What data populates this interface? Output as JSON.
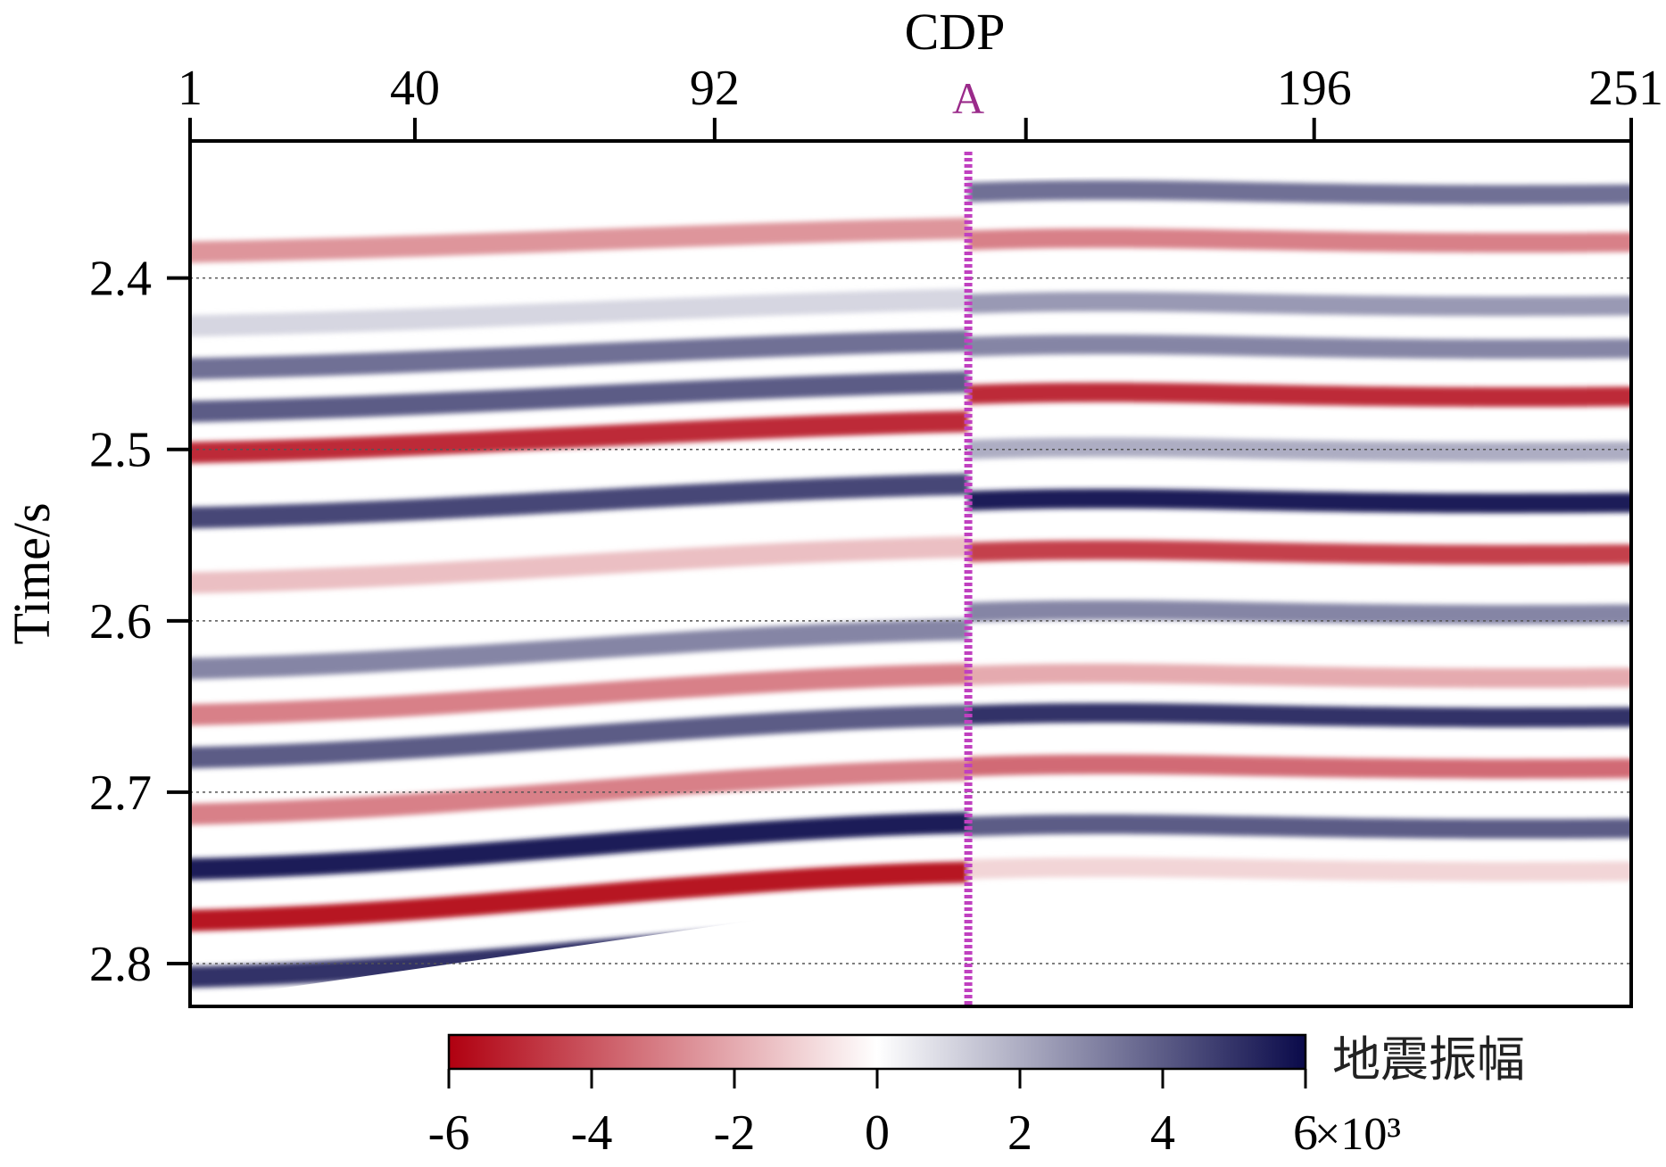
{
  "chart_data": {
    "type": "heatmap",
    "title": "",
    "xlabel": "CDP",
    "ylabel": "Time/s",
    "x_range": [
      1,
      251
    ],
    "x_ticks": [
      1,
      40,
      92,
      196,
      251
    ],
    "x_tick_labels": [
      "1",
      "40",
      "92",
      "196",
      "251"
    ],
    "y_range": [
      2.32,
      2.825
    ],
    "y_ticks": [
      2.4,
      2.5,
      2.6,
      2.7,
      2.8
    ],
    "y_tick_labels": [
      "2.4",
      "2.5",
      "2.6",
      "2.7",
      "2.8"
    ],
    "grid": "horizontal dotted lines at y ticks",
    "marker": {
      "label": "A",
      "cdp": 136,
      "color": "#c040c0"
    },
    "data_extent": {
      "left": {
        "top_time": 2.372,
        "bottom_time": 2.822
      },
      "marker": {
        "top_time": 2.342,
        "bottom_time": 2.757
      },
      "right": {
        "top_time": 2.335,
        "bottom_time": 2.755
      }
    },
    "colorbar": {
      "title": "地震振幅",
      "min": -6,
      "max": 6,
      "ticks": [
        -6,
        -4,
        -2,
        0,
        2,
        4,
        6
      ],
      "tick_labels": [
        "-6",
        "-4",
        "-2",
        "0",
        "2",
        "4",
        "6"
      ],
      "multiplier": "×10³",
      "colors": [
        "#b00010",
        "#ffffff",
        "#0a0a4a"
      ]
    },
    "horizons_left": [
      {
        "time": 2.385,
        "amp": -2.5
      },
      {
        "time": 2.428,
        "amp": 1.0
      },
      {
        "time": 2.453,
        "amp": 3.5
      },
      {
        "time": 2.478,
        "amp": 4.0
      },
      {
        "time": 2.502,
        "amp": -5.0
      },
      {
        "time": 2.54,
        "amp": 4.5
      },
      {
        "time": 2.578,
        "amp": -1.5
      },
      {
        "time": 2.628,
        "amp": 3.0
      },
      {
        "time": 2.655,
        "amp": -3.0
      },
      {
        "time": 2.68,
        "amp": 4.0
      },
      {
        "time": 2.713,
        "amp": -3.0
      },
      {
        "time": 2.745,
        "amp": 5.5
      },
      {
        "time": 2.775,
        "amp": -5.5
      },
      {
        "time": 2.808,
        "amp": 5.0
      }
    ],
    "horizons_right": [
      {
        "time": 2.35,
        "amp": 3.5
      },
      {
        "time": 2.378,
        "amp": -3.0
      },
      {
        "time": 2.415,
        "amp": 2.5
      },
      {
        "time": 2.44,
        "amp": 3.0
      },
      {
        "time": 2.468,
        "amp": -5.0
      },
      {
        "time": 2.5,
        "amp": 2.0
      },
      {
        "time": 2.53,
        "amp": 5.5
      },
      {
        "time": 2.56,
        "amp": -4.5
      },
      {
        "time": 2.595,
        "amp": 3.0
      },
      {
        "time": 2.632,
        "amp": -2.0
      },
      {
        "time": 2.655,
        "amp": 5.0
      },
      {
        "time": 2.685,
        "amp": -3.5
      },
      {
        "time": 2.72,
        "amp": 4.0
      },
      {
        "time": 2.745,
        "amp": -1.0
      }
    ]
  }
}
